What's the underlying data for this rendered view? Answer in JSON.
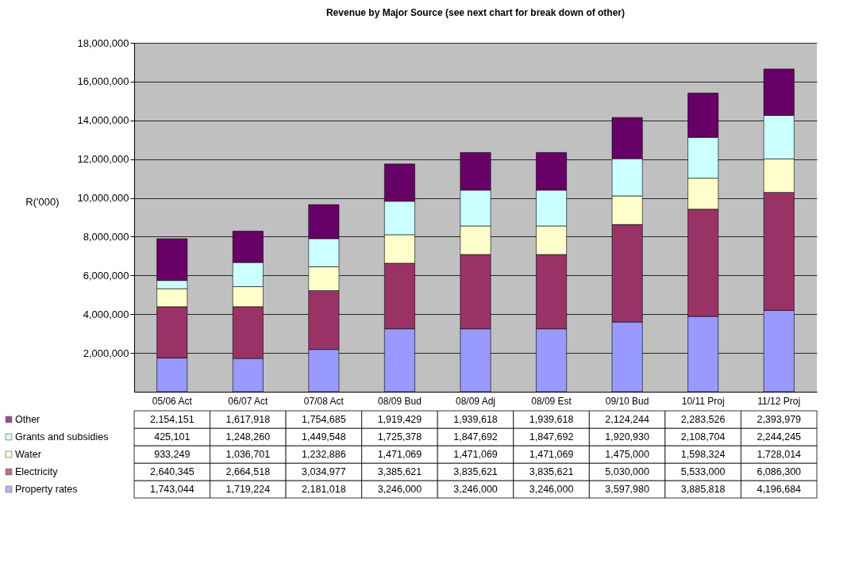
{
  "chart_data": {
    "type": "bar",
    "title": "Revenue by Major Source (see next chart for break down of other)",
    "ylabel": "R('000)",
    "stacked": true,
    "grid": "y",
    "legend": "bottom",
    "categories": [
      "05/06 Act",
      "06/07 Act",
      "07/08 Act",
      "08/09 Bud",
      "08/09 Adj",
      "08/09 Est",
      "09/10 Bud",
      "10/11 Proj",
      "11/12 Proj"
    ],
    "ylim": [
      0,
      18000000
    ],
    "yticks": [
      {
        "value": 2000000,
        "label": "2,000,000"
      },
      {
        "value": 4000000,
        "label": "4,000,000"
      },
      {
        "value": 6000000,
        "label": "6,000,000"
      },
      {
        "value": 8000000,
        "label": "8,000,000"
      },
      {
        "value": 10000000,
        "label": "10,000,000"
      },
      {
        "value": 12000000,
        "label": "12,000,000"
      },
      {
        "value": 14000000,
        "label": "14,000,000"
      },
      {
        "value": 16000000,
        "label": "16,000,000"
      },
      {
        "value": 18000000,
        "label": "18,000,000"
      }
    ],
    "series": [
      {
        "name": "Property rates",
        "color": "#9999ff",
        "values": [
          1743044,
          1719224,
          2181018,
          3246000,
          3246000,
          3246000,
          3597980,
          3885818,
          4196684
        ],
        "value_labels": [
          "1,743,044",
          "1,719,224",
          "2,181,018",
          "3,246,000",
          "3,246,000",
          "3,246,000",
          "3,597,980",
          "3,885,818",
          "4,196,684"
        ]
      },
      {
        "name": "Electricity",
        "color": "#993366",
        "values": [
          2640345,
          2664518,
          3034977,
          3385621,
          3835621,
          3835621,
          5030000,
          5533000,
          6086300
        ],
        "value_labels": [
          "2,640,345",
          "2,664,518",
          "3,034,977",
          "3,385,621",
          "3,835,621",
          "3,835,621",
          "5,030,000",
          "5,533,000",
          "6,086,300"
        ]
      },
      {
        "name": "Water",
        "color": "#ffffcc",
        "values": [
          933249,
          1036701,
          1232886,
          1471069,
          1471069,
          1471069,
          1475000,
          1598324,
          1728014
        ],
        "value_labels": [
          "933,249",
          "1,036,701",
          "1,232,886",
          "1,471,069",
          "1,471,069",
          "1,471,069",
          "1,475,000",
          "1,598,324",
          "1,728,014"
        ]
      },
      {
        "name": "Grants and subsidies",
        "color": "#ccffff",
        "values": [
          425101,
          1248260,
          1449548,
          1725378,
          1847692,
          1847692,
          1920930,
          2108704,
          2244245
        ],
        "value_labels": [
          "425,101",
          "1,248,260",
          "1,449,548",
          "1,725,378",
          "1,847,692",
          "1,847,692",
          "1,920,930",
          "2,108,704",
          "2,244,245"
        ]
      },
      {
        "name": "Other",
        "color": "#660066",
        "values": [
          2154151,
          1617918,
          1754685,
          1919429,
          1939618,
          1939618,
          2124244,
          2283526,
          2393979
        ],
        "value_labels": [
          "2,154,151",
          "1,617,918",
          "1,754,685",
          "1,919,429",
          "1,939,618",
          "1,939,618",
          "2,124,244",
          "2,283,526",
          "2,393,979"
        ]
      }
    ]
  }
}
